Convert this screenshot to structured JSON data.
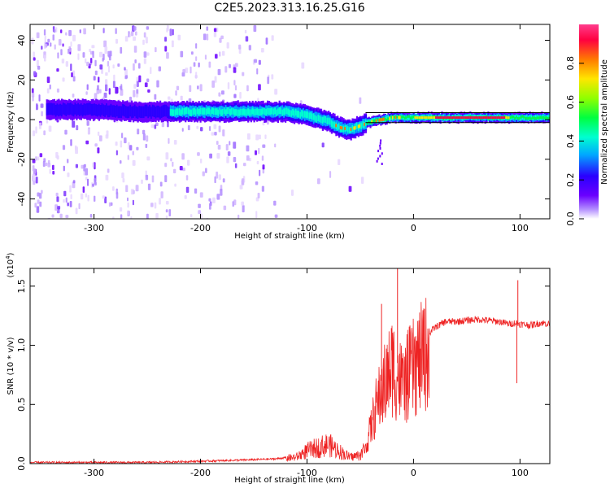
{
  "title": "C2E5.2023.313.16.25.G16",
  "chart_data": [
    {
      "type": "heatmap",
      "xlabel": "Height of straight line (km)",
      "ylabel": "Frequency (Hz)",
      "xlim": [
        -360,
        128
      ],
      "ylim": [
        -50,
        48
      ],
      "x_ticks": [
        -300,
        -200,
        -100,
        0,
        100
      ],
      "y_ticks": [
        -40,
        -20,
        0,
        20,
        40
      ],
      "colorbar": {
        "label": "Normalized spectral amplitude",
        "range": [
          0,
          1
        ],
        "ticks": [
          0.0,
          0.2,
          0.4,
          0.6,
          0.8
        ],
        "colors": [
          "#ffffff",
          "#b28cff",
          "#6a00ff",
          "#2a00ff",
          "#00a8ff",
          "#00ffd0",
          "#00ff40",
          "#90ff00",
          "#ffe600",
          "#ff7a00",
          "#ff0040",
          "#ff3c8c"
        ]
      },
      "ridge": {
        "x": [
          -340,
          -300,
          -260,
          -220,
          -180,
          -140,
          -120,
          -100,
          -80,
          -70,
          -60,
          -50,
          -40,
          -30,
          -20,
          -10,
          0,
          30,
          60,
          90,
          128
        ],
        "y": [
          5,
          5,
          4,
          4,
          4,
          4,
          4,
          2,
          -1,
          -4,
          -5,
          -3,
          -1,
          0,
          1,
          1,
          1,
          1,
          1,
          1,
          1
        ]
      }
    },
    {
      "type": "line",
      "xlabel": "Height of straight line (km)",
      "ylabel": "SNR (10 * v/v)",
      "y_multiplier": "(x10",
      "y_multiplier_exp": "4",
      "y_multiplier_close": ")",
      "xlim": [
        -360,
        128
      ],
      "ylim": [
        0,
        1.65
      ],
      "x_ticks": [
        -300,
        -200,
        -100,
        0,
        100
      ],
      "y_ticks": [
        0.0,
        0.5,
        1.0,
        1.5
      ],
      "series": [
        {
          "color": "#ee2222",
          "x": [
            -360,
            -300,
            -250,
            -200,
            -160,
            -130,
            -110,
            -100,
            -90,
            -80,
            -70,
            -60,
            -50,
            -45,
            -40,
            -35,
            -30,
            -25,
            -20,
            -15,
            -10,
            -5,
            0,
            10,
            20,
            30,
            40,
            60,
            80,
            90,
            96,
            100,
            110,
            115,
            120,
            128
          ],
          "y": [
            0.01,
            0.01,
            0.01,
            0.02,
            0.03,
            0.04,
            0.06,
            0.12,
            0.15,
            0.18,
            0.12,
            0.06,
            0.08,
            0.15,
            0.35,
            0.55,
            0.7,
            0.8,
            0.95,
            0.85,
            0.75,
            0.85,
            0.92,
            1.05,
            1.15,
            1.2,
            1.2,
            1.22,
            1.2,
            1.18,
            1.19,
            1.18,
            1.17,
            1.18,
            1.19,
            1.18
          ]
        }
      ],
      "spikes": [
        {
          "x": -15,
          "y": 1.65
        },
        {
          "x": 98,
          "y": 1.55
        },
        {
          "x": 97,
          "y": 0.68
        },
        {
          "x": -30,
          "y": 1.35
        }
      ]
    }
  ]
}
